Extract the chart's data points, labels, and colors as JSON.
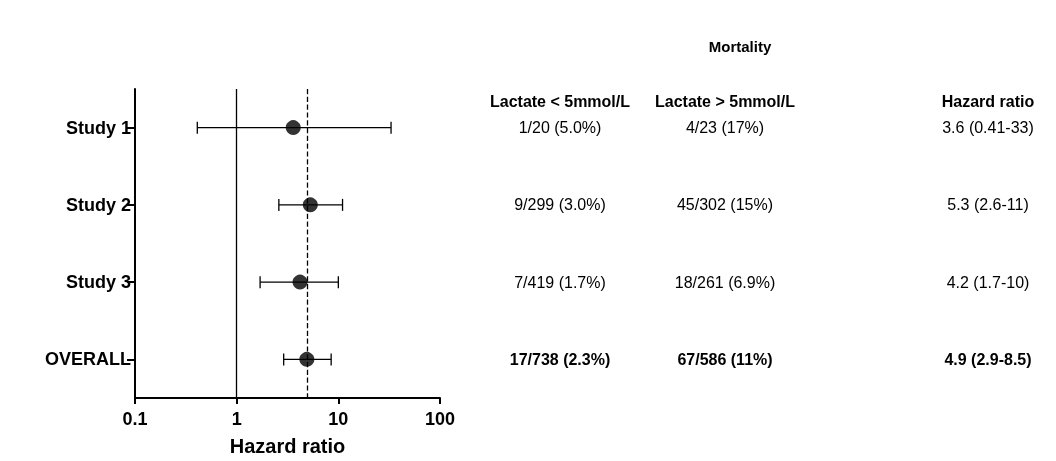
{
  "chart_data": {
    "type": "scatter",
    "orientation": "horizontal",
    "categories": [
      "Study 1",
      "Study 2",
      "Study 3",
      "OVERALL"
    ],
    "values": [
      3.6,
      5.3,
      4.2,
      4.9
    ],
    "errors": [
      [
        0.41,
        33
      ],
      [
        2.6,
        11
      ],
      [
        1.7,
        10
      ],
      [
        2.9,
        8.5
      ]
    ],
    "color": "#000000",
    "marker": "circle",
    "xlabel": "Hazard ratio",
    "xlim": [
      0.1,
      100
    ],
    "xticks": [
      0.1,
      1,
      10,
      100
    ],
    "log": "x",
    "grid": false,
    "ref_lines": [
      {
        "axis": "x",
        "value": 1,
        "line_style": "solid"
      },
      {
        "axis": "x",
        "value": 4.9,
        "line_style": "dashed"
      }
    ],
    "annotations": [
      "Mortality",
      "Lactate < 5mmol/L",
      "Lactate > 5mmol/L",
      "Hazard ratio",
      "1/20 (5.0%)",
      "4/23 (17%)",
      "3.6 (0.41-33)",
      "9/299 (3.0%)",
      "45/302 (15%)",
      "5.3 (2.6-11)",
      "7/419 (1.7%)",
      "18/261 (6.9%)",
      "4.2 (1.7-10)",
      "17/738 (2.3%)",
      "67/586 (11%)",
      "4.9 (2.9-8.5)"
    ]
  }
}
